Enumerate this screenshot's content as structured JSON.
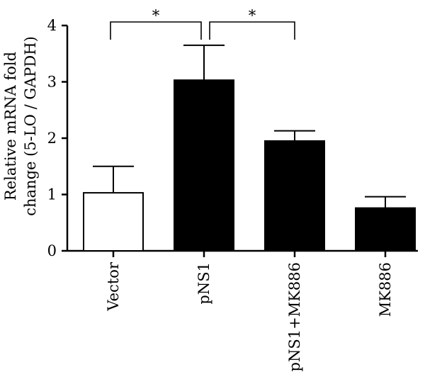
{
  "chart_data": {
    "type": "bar",
    "categories": [
      "Vector",
      "pNS1",
      "pNS1+MK886",
      "MK886"
    ],
    "values": [
      1.03,
      3.03,
      1.95,
      0.76
    ],
    "errors": [
      0.47,
      0.62,
      0.18,
      0.2
    ],
    "fills": [
      "#ffffff",
      "#000000",
      "#000000",
      "#000000"
    ],
    "ylabel_lines": [
      "Relative mRNA fold",
      "change (5-LO / GAPDH)"
    ],
    "ylim": [
      0,
      4
    ],
    "yticks": [
      "0",
      "1",
      "2",
      "3",
      "4"
    ],
    "significance": [
      {
        "from": 0,
        "to": 1,
        "label": "*"
      },
      {
        "from": 1,
        "to": 2,
        "label": "*"
      }
    ],
    "grid": false
  }
}
